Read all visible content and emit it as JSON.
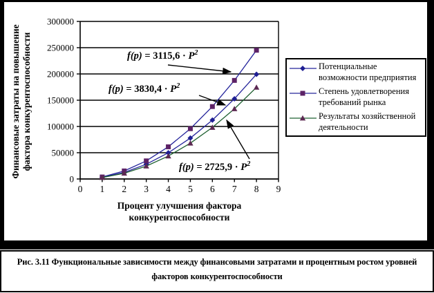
{
  "chart_data": {
    "type": "line",
    "x": [
      1,
      2,
      3,
      4,
      5,
      6,
      7,
      8
    ],
    "xlim": [
      0,
      9
    ],
    "ylim": [
      0,
      300000
    ],
    "ytick_step": 50000,
    "ytick_labels": [
      "0",
      "50000",
      "100000",
      "150000",
      "200000",
      "250000",
      "300000"
    ],
    "xtick_labels": [
      "0",
      "1",
      "2",
      "3",
      "4",
      "5",
      "6",
      "7",
      "8",
      "9"
    ],
    "grid": "horizontal",
    "legend_position": "right",
    "xlabel": "Процент улучшения фактора конкурентоспособности",
    "ylabel": "Финансовые затраты на повышение фактора конкурентоспособности",
    "series": [
      {
        "name": "Потенциальные возможности предприятия",
        "marker": "diamond",
        "line_color": "#24249B",
        "marker_color": "#1F1F93",
        "formula": "f(p) = 3115,6 · P²",
        "coefficient": 3115.6,
        "values": [
          3115.6,
          12462.4,
          28040.4,
          49849.6,
          77890,
          112161.6,
          152664.4,
          199398.4
        ]
      },
      {
        "name": "Степень удовлетворения требований рынка",
        "marker": "square",
        "line_color": "#24249B",
        "marker_color": "#5C2266",
        "formula": "f(p) = 3830,4 · P²",
        "coefficient": 3830.4,
        "values": [
          3830.4,
          15321.6,
          34473.6,
          61286.4,
          95760,
          137894.4,
          187689.6,
          245145.6
        ]
      },
      {
        "name": "Результаты хозяйственной деятельности",
        "marker": "triangle",
        "line_color": "#1E6030",
        "marker_color": "#5C2952",
        "formula": "f(p) = 2725,9 · P²",
        "coefficient": 2725.9,
        "values": [
          2725.9,
          10903.6,
          24533.1,
          43614.4,
          68147.5,
          98132.4,
          133568.1,
          174457.6
        ]
      }
    ],
    "annotations": [
      {
        "fp": "f(p)",
        "rhs": " = 3115,6 · ",
        "base": "P",
        "sup": "2",
        "arrow": [
          243,
          94,
          334,
          104
        ]
      },
      {
        "fp": "f(p)",
        "rhs": " = 3830,4 · ",
        "base": "P",
        "sup": "2",
        "arrow": [
          288,
          138,
          326,
          152
        ]
      },
      {
        "fp": "f(p)",
        "rhs": " = 2725,9 · ",
        "base": "P",
        "sup": "2",
        "arrow": [
          361,
          230,
          328,
          174
        ]
      }
    ]
  },
  "axes": {
    "y_title_line1": "Финансовые затраты на повышение",
    "y_title_line2": "фактора конкурентоспособности",
    "x_title_line1": "Процент улучшения фактора",
    "x_title_line2": "конкурентоспособности"
  },
  "caption": {
    "line1": "Рис. 3.11  Функциональные зависимости между финансовыми затратами и процентным ростом уровней",
    "line2": "факторов конкурентоспособности"
  }
}
